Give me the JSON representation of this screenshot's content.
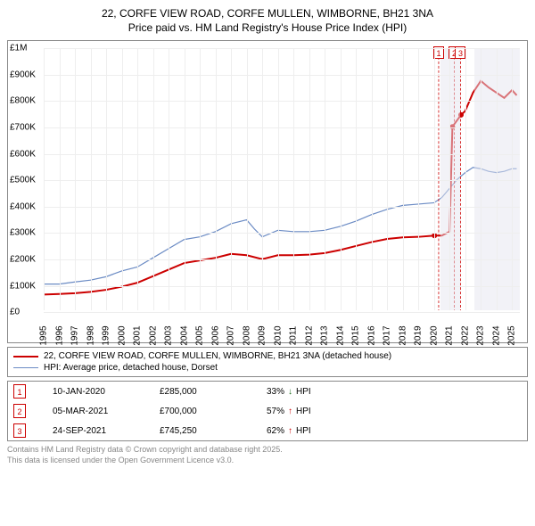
{
  "title_line1": "22, CORFE VIEW ROAD, CORFE MULLEN, WIMBORNE, BH21 3NA",
  "title_line2": "Price paid vs. HM Land Registry's House Price Index (HPI)",
  "chart": {
    "type": "line",
    "background_color": "#ffffff",
    "grid_color": "#eeeeee",
    "border_color": "#888888",
    "shade_color": "#e5e5ef",
    "y_axis": {
      "min": 0,
      "max": 1000000,
      "step": 100000,
      "labels": [
        "£0",
        "£100K",
        "£200K",
        "£300K",
        "£400K",
        "£500K",
        "£600K",
        "£700K",
        "£800K",
        "£900K",
        "£1M"
      ],
      "fontsize": 10
    },
    "x_axis": {
      "min": 1995,
      "max": 2025.5,
      "labels": [
        "1995",
        "1996",
        "1997",
        "1998",
        "1999",
        "2000",
        "2001",
        "2002",
        "2003",
        "2004",
        "2005",
        "2006",
        "2007",
        "2008",
        "2009",
        "2010",
        "2011",
        "2012",
        "2013",
        "2014",
        "2015",
        "2016",
        "2017",
        "2018",
        "2019",
        "2020",
        "2021",
        "2022",
        "2023",
        "2024",
        "2025"
      ],
      "fontsize": 10
    },
    "shade_ranges": [
      [
        2020.4,
        2021.7
      ],
      [
        2022.6,
        2025.5
      ]
    ],
    "series": [
      {
        "name": "price_paid",
        "label": "22, CORFE VIEW ROAD, CORFE MULLEN, WIMBORNE, BH21 3NA (detached house)",
        "color": "#cc0000",
        "width": 2,
        "points": [
          [
            1995,
            60000
          ],
          [
            1996,
            62000
          ],
          [
            1997,
            65000
          ],
          [
            1998,
            70000
          ],
          [
            1999,
            78000
          ],
          [
            2000,
            90000
          ],
          [
            2001,
            105000
          ],
          [
            2002,
            130000
          ],
          [
            2003,
            155000
          ],
          [
            2004,
            180000
          ],
          [
            2005,
            190000
          ],
          [
            2006,
            200000
          ],
          [
            2007,
            215000
          ],
          [
            2008,
            210000
          ],
          [
            2009,
            195000
          ],
          [
            2010,
            210000
          ],
          [
            2011,
            210000
          ],
          [
            2012,
            212000
          ],
          [
            2013,
            218000
          ],
          [
            2014,
            230000
          ],
          [
            2015,
            245000
          ],
          [
            2016,
            260000
          ],
          [
            2017,
            272000
          ],
          [
            2018,
            278000
          ],
          [
            2019,
            280000
          ],
          [
            2020.03,
            285000
          ],
          [
            2020.5,
            285000
          ],
          [
            2021.0,
            300000
          ],
          [
            2021.18,
            700000
          ],
          [
            2021.73,
            745250
          ],
          [
            2022.0,
            760000
          ],
          [
            2022.5,
            830000
          ],
          [
            2023.0,
            875000
          ],
          [
            2023.5,
            850000
          ],
          [
            2024.0,
            830000
          ],
          [
            2024.5,
            810000
          ],
          [
            2025.0,
            840000
          ],
          [
            2025.3,
            820000
          ]
        ],
        "markers": [
          {
            "n": "1",
            "x": 2020.03,
            "y": 285000
          },
          {
            "n": "2",
            "x": 2021.18,
            "y": 700000
          },
          {
            "n": "3",
            "x": 2021.73,
            "y": 745250
          }
        ]
      },
      {
        "name": "hpi",
        "label": "HPI: Average price, detached house, Dorset",
        "color": "#6b8bc4",
        "width": 1.2,
        "points": [
          [
            1995,
            100000
          ],
          [
            1996,
            100000
          ],
          [
            1997,
            108000
          ],
          [
            1998,
            115000
          ],
          [
            1999,
            128000
          ],
          [
            2000,
            150000
          ],
          [
            2001,
            165000
          ],
          [
            2002,
            200000
          ],
          [
            2003,
            235000
          ],
          [
            2004,
            270000
          ],
          [
            2005,
            280000
          ],
          [
            2006,
            300000
          ],
          [
            2007,
            330000
          ],
          [
            2008,
            345000
          ],
          [
            2008.5,
            310000
          ],
          [
            2009,
            280000
          ],
          [
            2010,
            305000
          ],
          [
            2011,
            300000
          ],
          [
            2012,
            300000
          ],
          [
            2013,
            305000
          ],
          [
            2014,
            320000
          ],
          [
            2015,
            340000
          ],
          [
            2016,
            365000
          ],
          [
            2017,
            385000
          ],
          [
            2018,
            400000
          ],
          [
            2019,
            405000
          ],
          [
            2020,
            410000
          ],
          [
            2020.5,
            430000
          ],
          [
            2021,
            465000
          ],
          [
            2021.5,
            500000
          ],
          [
            2022,
            525000
          ],
          [
            2022.5,
            545000
          ],
          [
            2023,
            540000
          ],
          [
            2023.5,
            530000
          ],
          [
            2024,
            525000
          ],
          [
            2024.5,
            530000
          ],
          [
            2025,
            540000
          ],
          [
            2025.3,
            540000
          ]
        ]
      }
    ],
    "callouts": [
      {
        "n": "1",
        "x": 2020.3,
        "color": "#cc0000"
      },
      {
        "n": "2",
        "x": 2021.3,
        "color": "#cc0000"
      },
      {
        "n": "3",
        "x": 2021.7,
        "color": "#cc0000"
      }
    ]
  },
  "legend": [
    {
      "color": "#cc0000",
      "width": 2,
      "label": "22, CORFE VIEW ROAD, CORFE MULLEN, WIMBORNE, BH21 3NA (detached house)"
    },
    {
      "color": "#6b8bc4",
      "width": 1,
      "label": "HPI: Average price, detached house, Dorset"
    }
  ],
  "datapoints": [
    {
      "n": "1",
      "date": "10-JAN-2020",
      "price": "£285,000",
      "pct": "33%",
      "dir": "↓",
      "dir_color": "#1a6b1a",
      "note": "HPI",
      "box_color": "#cc0000"
    },
    {
      "n": "2",
      "date": "05-MAR-2021",
      "price": "£700,000",
      "pct": "57%",
      "dir": "↑",
      "dir_color": "#cc0000",
      "note": "HPI",
      "box_color": "#cc0000"
    },
    {
      "n": "3",
      "date": "24-SEP-2021",
      "price": "£745,250",
      "pct": "62%",
      "dir": "↑",
      "dir_color": "#cc0000",
      "note": "HPI",
      "box_color": "#cc0000"
    }
  ],
  "footnote_line1": "Contains HM Land Registry data © Crown copyright and database right 2025.",
  "footnote_line2": "This data is licensed under the Open Government Licence v3.0."
}
